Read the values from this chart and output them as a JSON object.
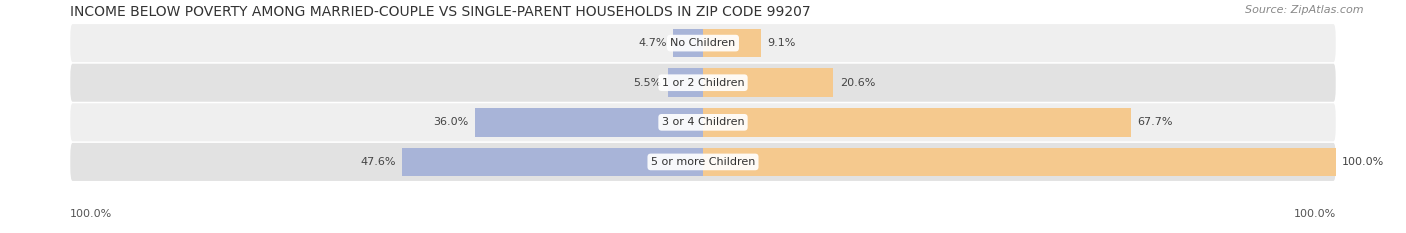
{
  "title": "INCOME BELOW POVERTY AMONG MARRIED-COUPLE VS SINGLE-PARENT HOUSEHOLDS IN ZIP CODE 99207",
  "source": "Source: ZipAtlas.com",
  "categories": [
    "No Children",
    "1 or 2 Children",
    "3 or 4 Children",
    "5 or more Children"
  ],
  "married_values": [
    4.7,
    5.5,
    36.0,
    47.6
  ],
  "single_values": [
    9.1,
    20.6,
    67.7,
    100.0
  ],
  "married_color": "#A8B4D8",
  "single_color": "#F5C98E",
  "row_bg_light": "#EFEFEF",
  "row_bg_dark": "#E2E2E2",
  "max_value": 100.0,
  "title_fontsize": 10.0,
  "label_fontsize": 8.0,
  "tick_fontsize": 8.0,
  "source_fontsize": 8.0,
  "legend_fontsize": 8.5,
  "axis_label_left": "100.0%",
  "axis_label_right": "100.0%"
}
